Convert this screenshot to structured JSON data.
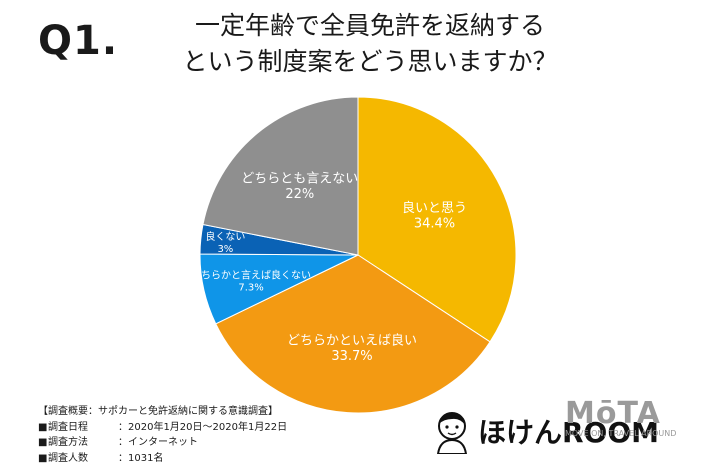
{
  "question_label": "Q1.",
  "title_lines": [
    "一定年齢で全員免許を返納する",
    "という制度案をどう思いますか？"
  ],
  "chart_data": {
    "type": "pie",
    "slices": [
      {
        "label": "良いと思う",
        "value": 34.4,
        "value_label": "34.4%",
        "color": "#F5B800"
      },
      {
        "label": "どちらかといえば良い",
        "value": 33.7,
        "value_label": "33.7%",
        "color": "#F39A12"
      },
      {
        "label": "どちらかと言えば良くない",
        "value": 7.3,
        "value_label": "7.3%",
        "color": "#0F95E8"
      },
      {
        "label": "良くない",
        "value": 3,
        "value_label": "3%",
        "color": "#0A62B5"
      },
      {
        "label": "どちらとも言えない",
        "value": 22,
        "value_label": "22%",
        "color": "#8F8F8F"
      }
    ]
  },
  "notes": {
    "heading": "【調査概要：サポカーと免許返納に関する意識調査】",
    "rows": [
      {
        "bullet": "■",
        "label": "調査日程",
        "value": "：2020年1月20日〜2020年1月22日"
      },
      {
        "bullet": "■",
        "label": "調査方法",
        "value": "：インターネット"
      },
      {
        "bullet": "■",
        "label": "調査人数",
        "value": "：1031名"
      }
    ]
  },
  "brand": {
    "name": "ほけんROOM"
  },
  "mota": {
    "logo": "MōTA",
    "tagline": "MOVE ON, TRAVEL AROUND"
  }
}
